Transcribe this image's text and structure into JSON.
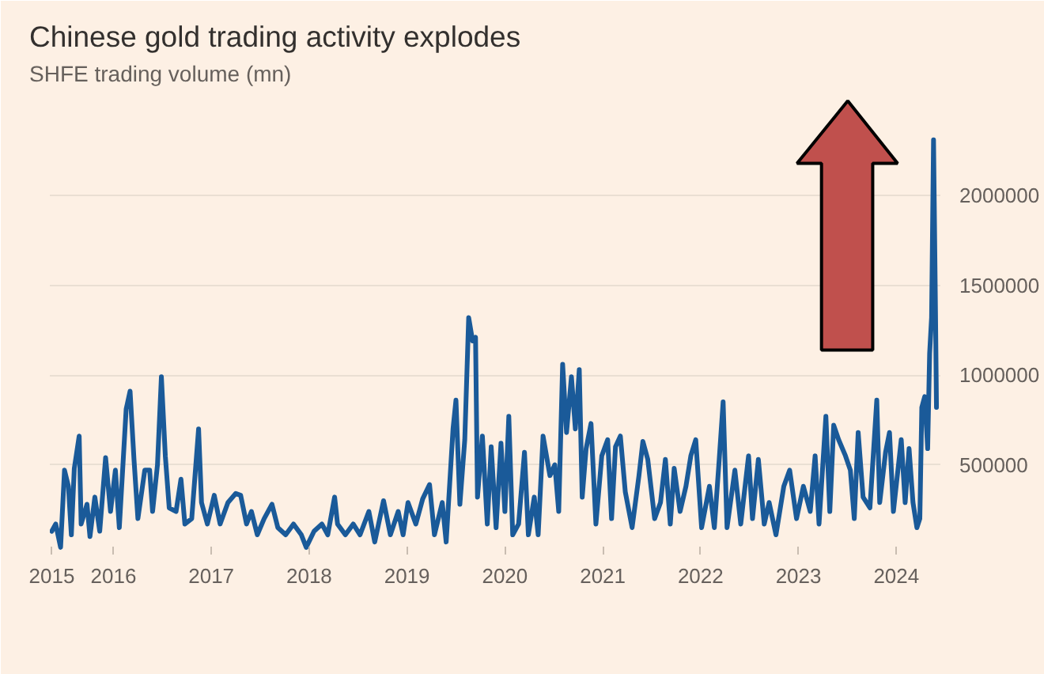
{
  "chart_data": {
    "type": "line",
    "title": "Chinese gold trading activity explodes",
    "subtitle": "SHFE trading volume (mn)",
    "x": [
      2015.37,
      2015.41,
      2015.46,
      2015.5,
      2015.54,
      2015.57,
      2015.6,
      2015.65,
      2015.67,
      2015.73,
      2015.76,
      2015.81,
      2015.86,
      2015.92,
      2015.97,
      2016.02,
      2016.06,
      2016.13,
      2016.17,
      2016.21,
      2016.25,
      2016.32,
      2016.37,
      2016.4,
      2016.45,
      2016.49,
      2016.53,
      2016.57,
      2016.64,
      2016.69,
      2016.73,
      2016.8,
      2016.87,
      2016.9,
      2016.96,
      2017.03,
      2017.09,
      2017.17,
      2017.25,
      2017.3,
      2017.36,
      2017.41,
      2017.47,
      2017.54,
      2017.62,
      2017.68,
      2017.76,
      2017.84,
      2017.92,
      2017.97,
      2018.05,
      2018.13,
      2018.19,
      2018.26,
      2018.29,
      2018.37,
      2018.45,
      2018.52,
      2018.61,
      2018.67,
      2018.76,
      2018.83,
      2018.91,
      2018.96,
      2019.01,
      2019.09,
      2019.16,
      2019.23,
      2019.28,
      2019.36,
      2019.4,
      2019.47,
      2019.5,
      2019.54,
      2019.59,
      2019.63,
      2019.67,
      2019.7,
      2019.72,
      2019.77,
      2019.82,
      2019.86,
      2019.91,
      2019.96,
      2020.0,
      2020.04,
      2020.08,
      2020.14,
      2020.2,
      2020.24,
      2020.3,
      2020.34,
      2020.39,
      2020.46,
      2020.51,
      2020.55,
      2020.59,
      2020.63,
      2020.68,
      2020.72,
      2020.76,
      2020.79,
      2020.83,
      2020.88,
      2020.93,
      2020.99,
      2021.05,
      2021.09,
      2021.13,
      2021.18,
      2021.23,
      2021.3,
      2021.37,
      2021.41,
      2021.46,
      2021.53,
      2021.59,
      2021.64,
      2021.69,
      2021.73,
      2021.79,
      2021.85,
      2021.9,
      2021.95,
      2022.01,
      2022.09,
      2022.14,
      2022.19,
      2022.23,
      2022.27,
      2022.35,
      2022.41,
      2022.49,
      2022.53,
      2022.59,
      2022.65,
      2022.7,
      2022.77,
      2022.85,
      2022.91,
      2022.98,
      2023.05,
      2023.12,
      2023.17,
      2023.21,
      2023.28,
      2023.32,
      2023.36,
      2023.41,
      2023.48,
      2023.53,
      2023.57,
      2023.61,
      2023.66,
      2023.73,
      2023.8,
      2023.83,
      2023.89,
      2023.93,
      2023.97,
      2024.05,
      2024.09,
      2024.13,
      2024.17,
      2024.21,
      2024.24,
      2024.26,
      2024.29,
      2024.32,
      2024.34,
      2024.36,
      2024.38,
      2024.4,
      2024.41
    ],
    "values": [
      130000,
      170000,
      40000,
      470000,
      380000,
      110000,
      480000,
      660000,
      170000,
      280000,
      100000,
      320000,
      130000,
      540000,
      240000,
      470000,
      150000,
      810000,
      910000,
      530000,
      200000,
      470000,
      470000,
      240000,
      500000,
      990000,
      550000,
      260000,
      240000,
      420000,
      170000,
      200000,
      700000,
      290000,
      170000,
      330000,
      170000,
      290000,
      340000,
      330000,
      170000,
      240000,
      110000,
      200000,
      280000,
      150000,
      110000,
      170000,
      110000,
      40000,
      130000,
      170000,
      110000,
      320000,
      170000,
      110000,
      170000,
      110000,
      240000,
      70000,
      300000,
      110000,
      240000,
      110000,
      290000,
      170000,
      310000,
      390000,
      110000,
      290000,
      70000,
      700000,
      860000,
      280000,
      640000,
      1320000,
      1190000,
      1210000,
      320000,
      660000,
      170000,
      600000,
      150000,
      620000,
      240000,
      770000,
      110000,
      170000,
      570000,
      110000,
      320000,
      110000,
      660000,
      440000,
      500000,
      240000,
      1060000,
      680000,
      990000,
      700000,
      1030000,
      320000,
      590000,
      730000,
      170000,
      550000,
      640000,
      200000,
      600000,
      660000,
      350000,
      150000,
      440000,
      630000,
      530000,
      200000,
      290000,
      530000,
      170000,
      480000,
      240000,
      380000,
      550000,
      640000,
      150000,
      380000,
      150000,
      530000,
      850000,
      150000,
      470000,
      170000,
      550000,
      200000,
      530000,
      170000,
      290000,
      110000,
      380000,
      470000,
      200000,
      380000,
      240000,
      550000,
      170000,
      770000,
      240000,
      720000,
      640000,
      550000,
      470000,
      200000,
      680000,
      320000,
      260000,
      860000,
      290000,
      570000,
      680000,
      240000,
      640000,
      290000,
      590000,
      290000,
      150000,
      200000,
      820000,
      880000,
      590000,
      1120000,
      1320000,
      2310000,
      1350000,
      820000
    ],
    "color": "#1a5a99",
    "xlim": [
      2015.35,
      2024.45
    ],
    "xticks": [
      {
        "value": 2015.37,
        "label": "2015"
      },
      2016,
      2017,
      2018,
      2019,
      2020,
      2021,
      2022,
      2023,
      2024
    ],
    "ylim": [
      0,
      2600000
    ],
    "yticks": [
      500000,
      1000000,
      1500000,
      2000000
    ],
    "grid": "y"
  }
}
